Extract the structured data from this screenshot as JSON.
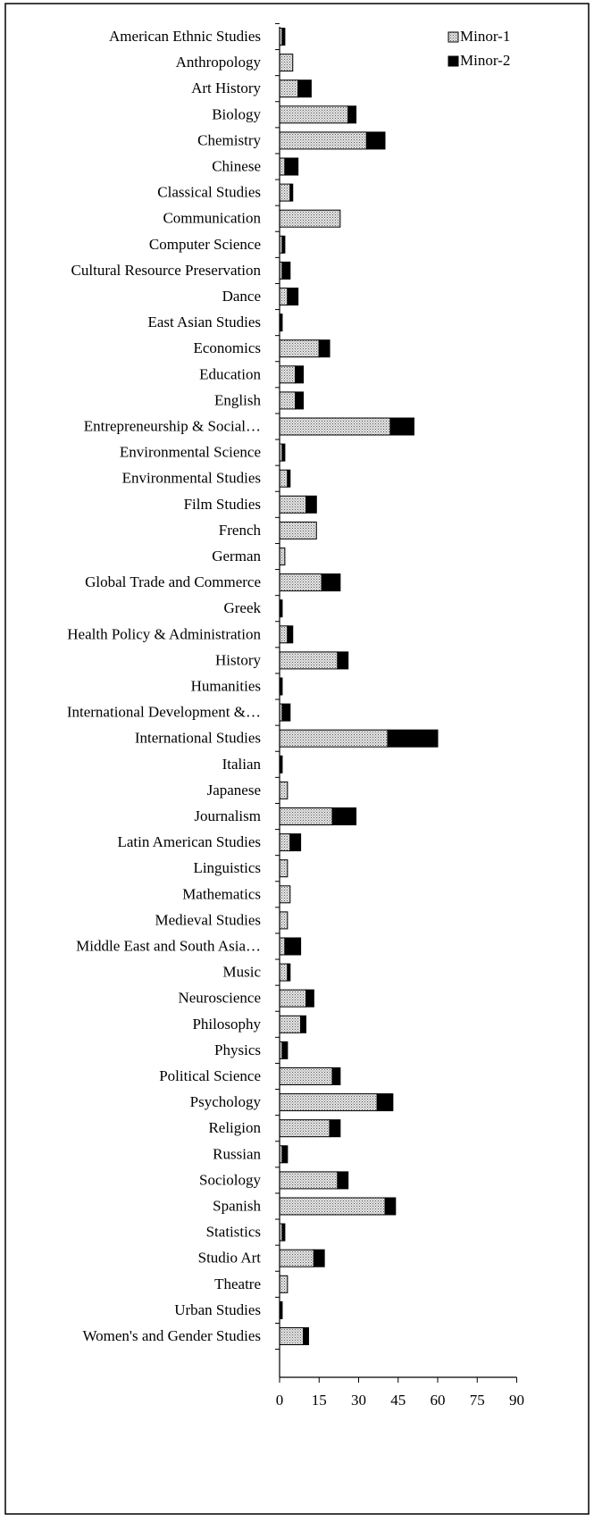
{
  "chart_data": {
    "type": "bar",
    "orientation": "horizontal",
    "stacked": true,
    "categories": [
      "American Ethnic Studies",
      "Anthropology",
      "Art History",
      "Biology",
      "Chemistry",
      "Chinese",
      "Classical Studies",
      "Communication",
      "Computer Science",
      "Cultural Resource Preservation",
      "Dance",
      "East Asian Studies",
      "Economics",
      "Education",
      "English",
      "Entrepreneurship & Social…",
      "Environmental Science",
      "Environmental Studies",
      "Film Studies",
      "French",
      "German",
      "Global Trade and Commerce",
      "Greek",
      "Health Policy & Administration",
      "History",
      "Humanities",
      "International Development &…",
      "International Studies",
      "Italian",
      "Japanese",
      "Journalism",
      "Latin American Studies",
      "Linguistics",
      "Mathematics",
      "Medieval Studies",
      "Middle East and South Asia…",
      "Music",
      "Neuroscience",
      "Philosophy",
      "Physics",
      "Political Science",
      "Psychology",
      "Religion",
      "Russian",
      "Sociology",
      "Spanish",
      "Statistics",
      "Studio Art",
      "Theatre",
      "Urban Studies",
      "Women's and Gender Studies"
    ],
    "series": [
      {
        "name": "Minor-1",
        "values": [
          1,
          5,
          7,
          26,
          33,
          2,
          4,
          23,
          1,
          1,
          3,
          0,
          15,
          6,
          6,
          42,
          1,
          3,
          10,
          14,
          2,
          16,
          0,
          3,
          22,
          0,
          1,
          41,
          0,
          3,
          20,
          4,
          3,
          4,
          3,
          2,
          3,
          10,
          8,
          1,
          20,
          37,
          19,
          1,
          22,
          40,
          1,
          13,
          3,
          0,
          9
        ]
      },
      {
        "name": "Minor-2",
        "values": [
          1,
          0,
          5,
          3,
          7,
          5,
          1,
          0,
          1,
          3,
          4,
          1,
          4,
          3,
          3,
          9,
          1,
          1,
          4,
          0,
          0,
          7,
          1,
          2,
          4,
          1,
          3,
          19,
          1,
          0,
          9,
          4,
          0,
          0,
          0,
          6,
          1,
          3,
          2,
          2,
          3,
          6,
          4,
          2,
          4,
          4,
          1,
          4,
          0,
          1,
          2
        ]
      }
    ],
    "xlim": [
      0,
      90
    ],
    "xticks": [
      "0",
      "15",
      "30",
      "45",
      "60",
      "75",
      "90"
    ],
    "grid": false,
    "legend": "top-right",
    "colors": {
      "minor1_fill": "#e6e6e6",
      "minor1_dot": "#555555",
      "minor2_fill": "#000000",
      "stroke": "#000000"
    }
  }
}
